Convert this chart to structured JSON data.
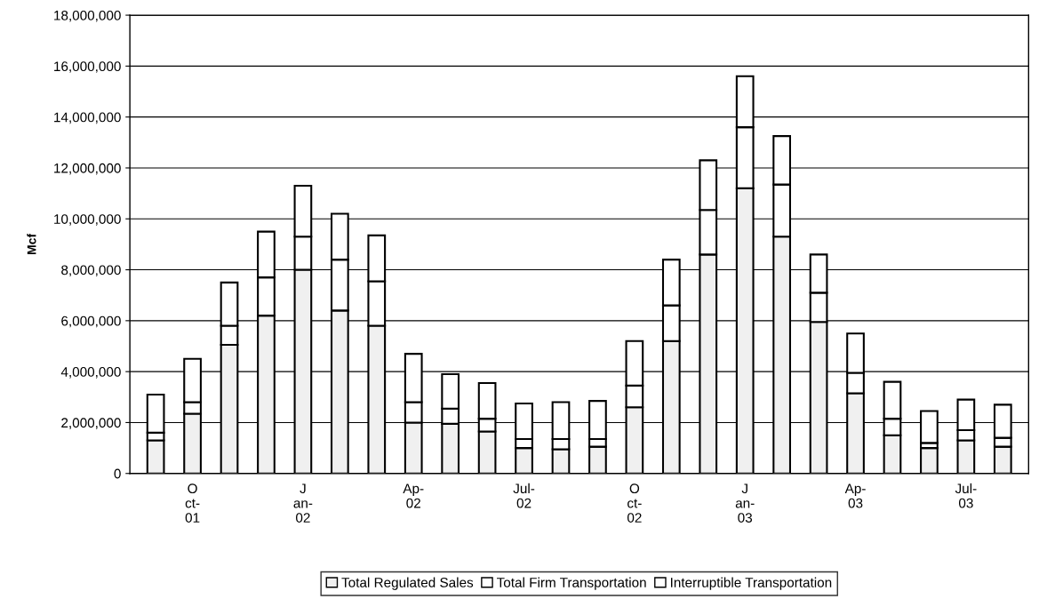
{
  "chart_data": {
    "type": "bar",
    "stacked": true,
    "ylabel": "Mcf",
    "categories": [
      null,
      "O\nct-\n01",
      null,
      null,
      "J\nan-\n02",
      null,
      null,
      "Ap-\n02",
      null,
      null,
      "Jul-\n02",
      null,
      null,
      "O\nct-\n02",
      null,
      null,
      "J\nan-\n03",
      null,
      null,
      "Ap-\n03",
      null,
      null,
      "Jul-\n03",
      null
    ],
    "series": [
      {
        "name": "Total Regulated Sales",
        "color": "#f0f0f0",
        "values": [
          1300000,
          2350000,
          5050000,
          6200000,
          8000000,
          6400000,
          5800000,
          2000000,
          1950000,
          1650000,
          1000000,
          950000,
          1050000,
          2600000,
          5200000,
          8600000,
          11200000,
          9300000,
          5950000,
          3150000,
          1500000,
          1000000,
          1300000,
          1050000
        ]
      },
      {
        "name": "Total Firm Transportation",
        "color": "#ffffff",
        "values": [
          300000,
          450000,
          750000,
          1500000,
          1300000,
          2000000,
          1750000,
          800000,
          600000,
          500000,
          350000,
          400000,
          300000,
          850000,
          1400000,
          1750000,
          2400000,
          2050000,
          1150000,
          800000,
          650000,
          200000,
          400000,
          350000
        ]
      },
      {
        "name": "Interruptible Transportation",
        "color": "#ffffff",
        "values": [
          1500000,
          1700000,
          1700000,
          1800000,
          2000000,
          1800000,
          1800000,
          1900000,
          1350000,
          1400000,
          1400000,
          1450000,
          1500000,
          1750000,
          1800000,
          1950000,
          2000000,
          1900000,
          1500000,
          1550000,
          1450000,
          1250000,
          1200000,
          1300000
        ]
      }
    ],
    "ylim": [
      0,
      18000000
    ],
    "yticks": [
      0,
      {
        "value": 2000000,
        "label": "2,000,000"
      },
      {
        "value": 4000000,
        "label": "4,000,000"
      },
      {
        "value": 6000000,
        "label": "6,000,000"
      },
      {
        "value": 8000000,
        "label": "8,000,000"
      },
      {
        "value": 10000000,
        "label": "10,000,000"
      },
      {
        "value": 12000000,
        "label": "12,000,000"
      },
      {
        "value": 14000000,
        "label": "14,000,000"
      },
      {
        "value": 16000000,
        "label": "16,000,000"
      },
      {
        "value": 18000000,
        "label": "18,000,000"
      }
    ],
    "grid": "y",
    "legend": "bottom"
  }
}
